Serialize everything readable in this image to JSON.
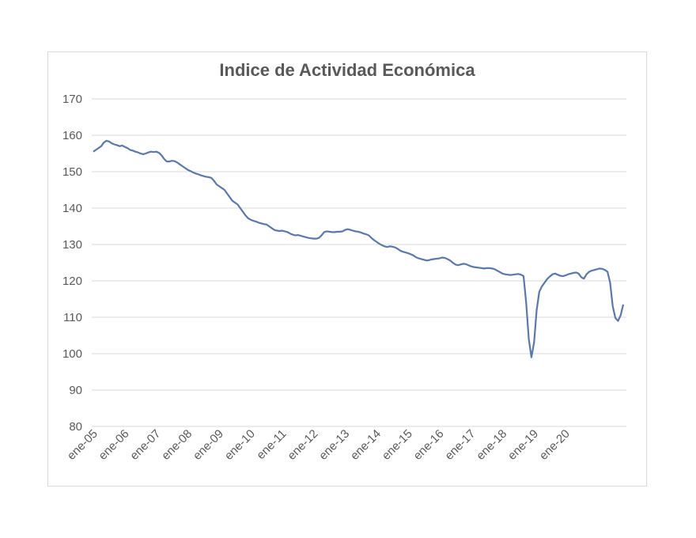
{
  "chart_data": {
    "type": "line",
    "title": "Indice de Actividad Económica",
    "xlabel": "",
    "ylabel": "",
    "ylim": [
      80,
      170
    ],
    "yticks": [
      80,
      90,
      100,
      110,
      120,
      130,
      140,
      150,
      160,
      170
    ],
    "xticks": [
      "ene-05",
      "ene-06",
      "ene-07",
      "ene-08",
      "ene-09",
      "ene-10",
      "ene-11",
      "ene-12",
      "ene-13",
      "ene-14",
      "ene-15",
      "ene-16",
      "ene-17",
      "ene-18",
      "ene-19",
      "ene-20"
    ],
    "grid": true,
    "legend": "none",
    "series_color": "#5b78aa",
    "x_start": "ene-05",
    "series": [
      {
        "values": [
          155.5,
          156,
          156.5,
          157,
          158,
          158.5,
          158.3,
          157.8,
          157.5,
          157.3,
          157,
          157.2,
          156.8,
          156.5,
          156,
          155.8,
          155.5,
          155.3,
          155,
          154.8,
          155,
          155.3,
          155.5,
          155.4,
          155.5,
          155.2,
          154.5,
          153.5,
          152.8,
          152.8,
          153,
          152.9,
          152.5,
          152,
          151.5,
          151,
          150.5,
          150.2,
          149.8,
          149.5,
          149.3,
          149,
          148.8,
          148.6,
          148.5,
          148.3,
          147.5,
          146.5,
          146,
          145.5,
          145,
          144,
          143,
          142,
          141.5,
          141,
          140,
          139,
          138,
          137.2,
          136.8,
          136.5,
          136.3,
          136,
          135.8,
          135.6,
          135.5,
          135,
          134.5,
          134,
          133.8,
          133.7,
          133.8,
          133.6,
          133.4,
          133,
          132.7,
          132.5,
          132.6,
          132.4,
          132.2,
          132,
          131.8,
          131.7,
          131.6,
          131.6,
          131.8,
          132.5,
          133.4,
          133.6,
          133.5,
          133.4,
          133.4,
          133.5,
          133.5,
          133.6,
          134,
          134.2,
          134,
          133.8,
          133.6,
          133.5,
          133.3,
          133,
          132.8,
          132.5,
          131.8,
          131.2,
          130.7,
          130.2,
          129.8,
          129.5,
          129.3,
          129.5,
          129.4,
          129.2,
          128.8,
          128.3,
          128,
          127.8,
          127.6,
          127.3,
          127,
          126.5,
          126.2,
          126,
          125.8,
          125.6,
          125.7,
          125.9,
          126,
          126.1,
          126.2,
          126.4,
          126.3,
          126,
          125.6,
          125,
          124.5,
          124.3,
          124.5,
          124.7,
          124.6,
          124.3,
          124,
          123.8,
          123.7,
          123.6,
          123.5,
          123.4,
          123.5,
          123.5,
          123.4,
          123.2,
          122.8,
          122.4,
          122,
          121.8,
          121.7,
          121.6,
          121.7,
          121.8,
          121.9,
          121.7,
          121.3,
          114,
          104,
          99,
          103,
          112,
          117,
          118.5,
          119.5,
          120.5,
          121.2,
          121.8,
          122,
          121.7,
          121.4,
          121.3,
          121.5,
          121.8,
          122,
          122.2,
          122.3,
          122,
          121,
          120.6,
          121.8,
          122.5,
          122.8,
          123,
          123.2,
          123.4,
          123.3,
          123,
          122.5,
          119.5,
          113,
          109.8,
          109,
          110.5,
          113.5
        ]
      }
    ]
  }
}
